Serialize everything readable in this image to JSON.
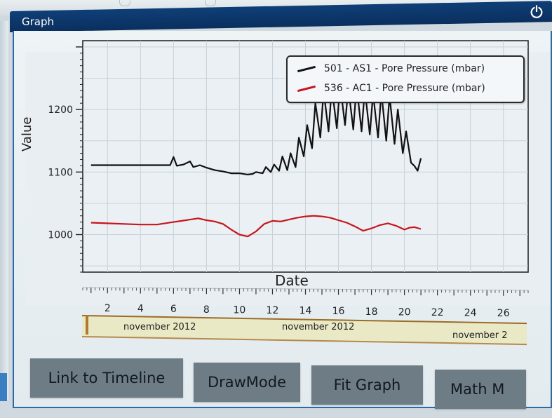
{
  "window": {
    "title": "Graph",
    "power_icon": "power-icon"
  },
  "chart_data": {
    "type": "line",
    "xlabel": "Date",
    "ylabel": "Value",
    "ylim": [
      940,
      1310
    ],
    "yticks": [
      1000,
      1100,
      1200
    ],
    "ytick_labels": [
      "1000",
      "1100",
      "1200"
    ],
    "grid": true,
    "legend": "top-right",
    "series": [
      {
        "name": "501 - AS1 -  Pore Pressure (mbar)",
        "color": "#111111",
        "x": [
          1,
          2,
          3,
          4,
          5,
          5.8,
          6,
          6.2,
          6.6,
          7,
          7.2,
          7.6,
          8,
          8.5,
          9,
          9.5,
          10,
          10.5,
          10.8,
          11.0,
          11.4,
          11.6,
          11.9,
          12.1,
          12.4,
          12.6,
          12.9,
          13.1,
          13.4,
          13.6,
          13.9,
          14.1,
          14.4,
          14.6,
          14.9,
          15.1,
          15.4,
          15.6,
          15.9,
          16.1,
          16.4,
          16.6,
          16.9,
          17.1,
          17.4,
          17.6,
          17.9,
          18.1,
          18.4,
          18.6,
          18.9,
          19.1,
          19.4,
          19.6,
          19.9,
          20.1,
          20.4,
          20.6,
          20.8,
          21.0
        ],
        "y": [
          1111,
          1111,
          1111,
          1111,
          1111,
          1111,
          1124,
          1110,
          1112,
          1117,
          1108,
          1111,
          1107,
          1103,
          1101,
          1098,
          1098,
          1096,
          1097,
          1100,
          1098,
          1108,
          1100,
          1112,
          1102,
          1125,
          1103,
          1130,
          1108,
          1155,
          1125,
          1175,
          1138,
          1210,
          1155,
          1230,
          1165,
          1235,
          1170,
          1240,
          1175,
          1235,
          1168,
          1238,
          1165,
          1232,
          1160,
          1225,
          1155,
          1228,
          1150,
          1222,
          1145,
          1200,
          1130,
          1165,
          1115,
          1110,
          1102,
          1122
        ]
      },
      {
        "name": "536 - AC1 -  Pore Pressure (mbar)",
        "color": "#c8141c",
        "x": [
          1,
          2,
          3,
          4,
          5,
          6,
          6.5,
          7,
          7.5,
          8,
          8.5,
          9,
          9.5,
          10,
          10.5,
          11,
          11.5,
          12,
          12.5,
          13,
          13.5,
          14,
          14.5,
          15,
          15.5,
          16,
          16.5,
          17,
          17.5,
          18,
          18.5,
          19,
          19.5,
          20,
          20.3,
          20.6,
          21
        ],
        "y": [
          1019,
          1018,
          1017,
          1016,
          1016,
          1020,
          1022,
          1024,
          1026,
          1023,
          1021,
          1017,
          1008,
          1000,
          997,
          1005,
          1017,
          1022,
          1021,
          1024,
          1027,
          1029,
          1030,
          1029,
          1027,
          1023,
          1019,
          1013,
          1006,
          1010,
          1015,
          1018,
          1014,
          1008,
          1011,
          1012,
          1009
        ]
      }
    ],
    "x_ticks": [
      "2",
      "4",
      "6",
      "8",
      "10",
      "12",
      "14",
      "16",
      "18",
      "20",
      "22",
      "24",
      "26"
    ],
    "x_tick_values": [
      2,
      4,
      6,
      8,
      10,
      12,
      14,
      16,
      18,
      20,
      22,
      24,
      26
    ]
  },
  "timeline": {
    "labels": [
      "november 2012",
      "november 2012",
      "november 2"
    ]
  },
  "buttons": {
    "link_to_timeline": "Link to Timeline",
    "draw_mode": "DrawMode",
    "fit_graph": "Fit Graph",
    "math_mode": "Math M"
  }
}
